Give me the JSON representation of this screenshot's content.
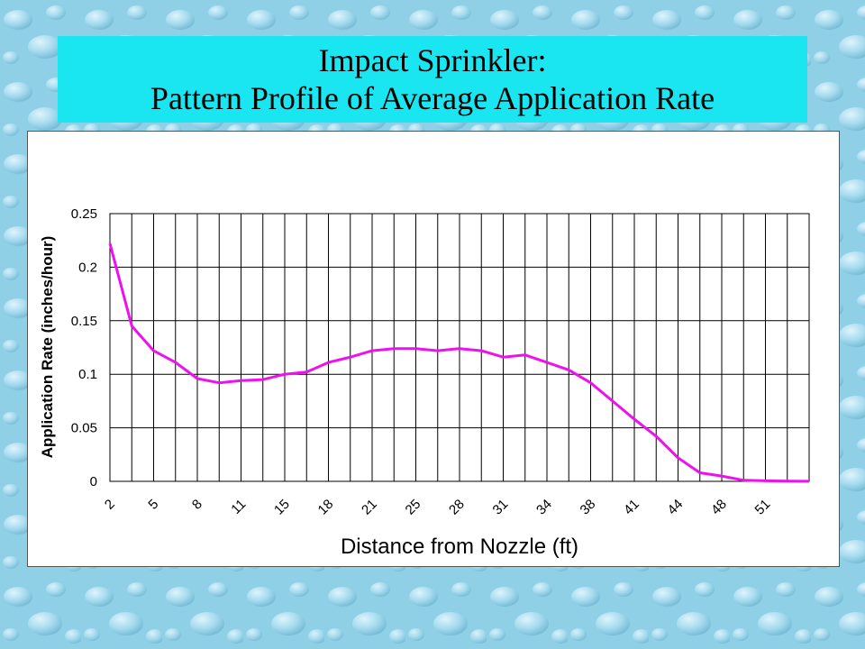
{
  "slide": {
    "title_line1": "Impact Sprinkler:",
    "title_line2": "Pattern Profile of Average Application Rate"
  },
  "colors": {
    "background": "#8fd0e6",
    "title_box": "#19e6f0",
    "series_line": "#ee11ee",
    "grid": "#000000"
  },
  "chart_data": {
    "type": "line",
    "title": "",
    "xlabel": "Distance from Nozzle (ft)",
    "ylabel": "Application Rate (inches/hour)",
    "ylim": [
      0,
      0.25
    ],
    "yticks": [
      "0",
      "0.05",
      "0.1",
      "0.15",
      "0.2",
      "0.25"
    ],
    "x": [
      2,
      3.5,
      5,
      6.5,
      8,
      9.5,
      11,
      13,
      15,
      16.5,
      18,
      19.5,
      21,
      23,
      25,
      26.5,
      28,
      29.5,
      31,
      32.5,
      34,
      36,
      38,
      39.5,
      41,
      42.5,
      44,
      46,
      48,
      49.5,
      51,
      52.5,
      54
    ],
    "xtick_labels": [
      "2",
      "5",
      "8",
      "11",
      "15",
      "18",
      "21",
      "25",
      "28",
      "31",
      "34",
      "38",
      "41",
      "44",
      "48",
      "51"
    ],
    "grid": true,
    "legend": "none",
    "series": [
      {
        "values": [
          0.222,
          0.145,
          0.122,
          0.111,
          0.096,
          0.092,
          0.094,
          0.095,
          0.1,
          0.102,
          0.111,
          0.116,
          0.122,
          0.124,
          0.124,
          0.122,
          0.124,
          0.122,
          0.116,
          0.118,
          0.111,
          0.104,
          0.092,
          0.075,
          0.058,
          0.042,
          0.022,
          0.008,
          0.005,
          0.001,
          0.0005,
          0.0002,
          0.0001
        ]
      }
    ]
  }
}
